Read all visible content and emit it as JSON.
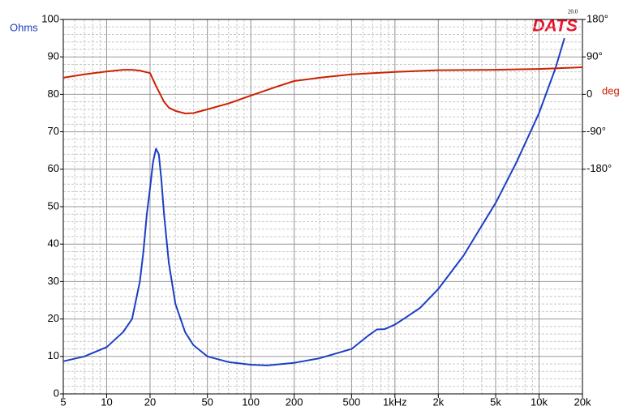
{
  "chart_data": {
    "type": "line",
    "logo": "DATS",
    "version": "20.0",
    "ylabel": "Ohms",
    "y2label": "deg",
    "xscale": "log",
    "grid": true,
    "minor_grid": true,
    "xlim": [
      5,
      20000
    ],
    "xticks": [
      5,
      10,
      20,
      50,
      100,
      200,
      500,
      {
        "value": 1000,
        "label": "1kHz"
      },
      {
        "value": 2000,
        "label": "2k"
      },
      {
        "value": 5000,
        "label": "5k"
      },
      {
        "value": 10000,
        "label": "10k"
      },
      {
        "value": 20000,
        "label": "20k"
      }
    ],
    "ylim": [
      0,
      100
    ],
    "yticks": [
      0,
      10,
      20,
      30,
      40,
      50,
      60,
      70,
      80,
      90,
      100
    ],
    "y2lim": [
      -720,
      180
    ],
    "y2ticks": [
      {
        "value": -180,
        "label": "-180°"
      },
      {
        "value": -90,
        "label": "-90°"
      },
      0,
      {
        "value": 90,
        "label": "90°"
      },
      {
        "value": 180,
        "label": "180°"
      }
    ],
    "series": [
      {
        "name": "Impedance",
        "color": "#1a3fc4",
        "x": [
          5,
          7,
          10,
          13,
          15,
          17,
          18,
          19,
          20,
          21,
          22,
          23,
          24,
          25,
          27,
          30,
          35,
          40,
          50,
          70,
          100,
          130,
          200,
          300,
          500,
          650,
          750,
          850,
          1000,
          1200,
          1500,
          2000,
          3000,
          5000,
          7000,
          10000,
          13000,
          15000
        ],
        "values": [
          8.7,
          10,
          12.5,
          16.5,
          20,
          30,
          38,
          48,
          55,
          62,
          65.5,
          64,
          57,
          48,
          35,
          24,
          16.5,
          13,
          10,
          8.5,
          7.8,
          7.6,
          8.3,
          9.5,
          12,
          15.5,
          17.2,
          17.3,
          18.5,
          20.5,
          23,
          28,
          37,
          51,
          62,
          75,
          87,
          95
        ]
      },
      {
        "name": "Phase",
        "color": "#cc2200",
        "axis": "y2",
        "x": [
          5,
          7,
          10,
          13,
          15,
          17,
          20,
          22,
          25,
          27,
          30,
          35,
          40,
          50,
          70,
          100,
          150,
          200,
          300,
          500,
          1000,
          2000,
          5000,
          10000,
          20000
        ],
        "values": [
          40,
          48,
          55,
          59,
          59,
          57,
          51,
          20,
          -18,
          -32,
          -40,
          -46,
          -45,
          -36,
          -22,
          -3,
          18,
          32,
          40,
          48,
          54,
          58,
          59,
          61,
          65
        ]
      }
    ]
  }
}
